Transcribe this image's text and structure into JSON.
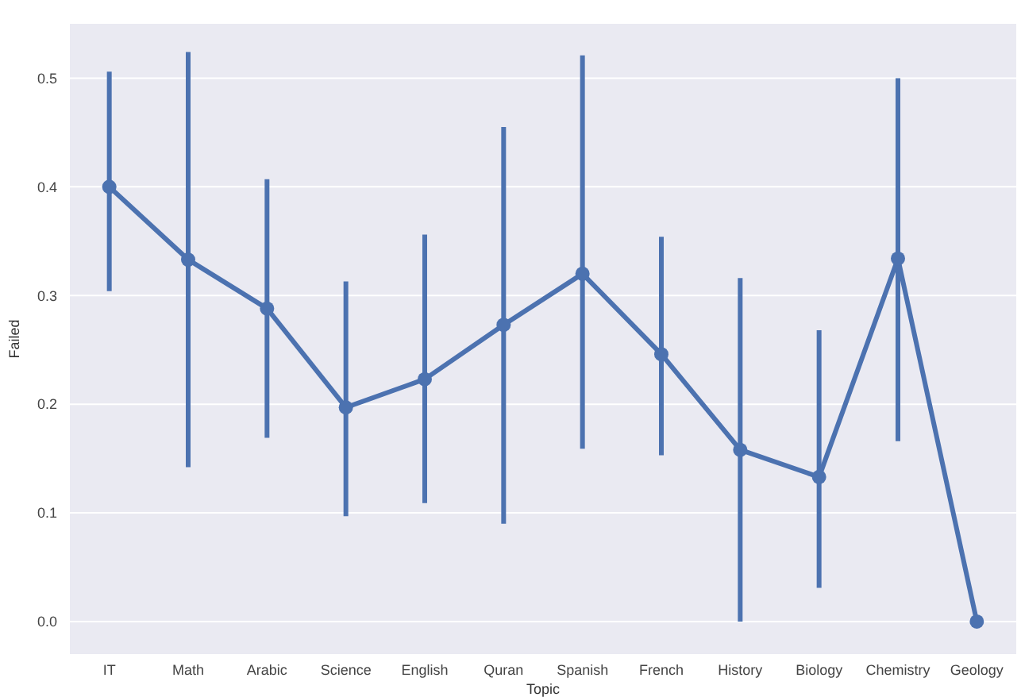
{
  "chart_data": {
    "type": "line",
    "xlabel": "Topic",
    "ylabel": "Failed",
    "categories": [
      "IT",
      "Math",
      "Arabic",
      "Science",
      "English",
      "Quran",
      "Spanish",
      "French",
      "History",
      "Biology",
      "Chemistry",
      "Geology"
    ],
    "values": [
      0.4,
      0.333,
      0.288,
      0.197,
      0.223,
      0.273,
      0.32,
      0.246,
      0.158,
      0.133,
      0.334,
      0.0
    ],
    "errors": [
      [
        0.304,
        0.506
      ],
      [
        0.142,
        0.524
      ],
      [
        0.169,
        0.407
      ],
      [
        0.097,
        0.313
      ],
      [
        0.109,
        0.356
      ],
      [
        0.09,
        0.455
      ],
      [
        0.159,
        0.521
      ],
      [
        0.153,
        0.354
      ],
      [
        0.0,
        0.316
      ],
      [
        0.031,
        0.268
      ],
      [
        0.166,
        0.5
      ],
      null
    ],
    "color": "#4c72b0",
    "ylim": [
      -0.03,
      0.55
    ],
    "yticks": [
      {
        "value": 0,
        "label": "0.0"
      },
      0.1,
      0.2,
      0.3,
      0.4,
      0.5
    ],
    "grid": "y",
    "marker": "circle",
    "line_style": "solid"
  }
}
